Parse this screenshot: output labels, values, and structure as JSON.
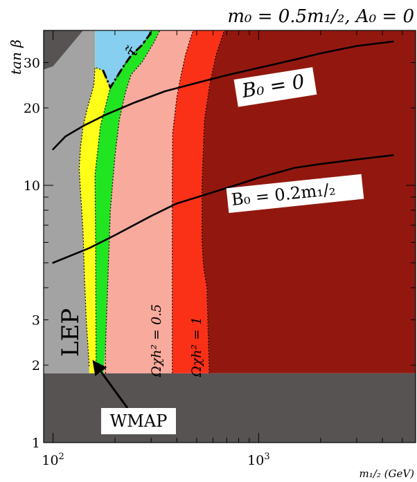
{
  "chart_data": {
    "type": "area",
    "title": "m₀ = 0.5m₁/₂, A₀ = 0",
    "xlabel": "m₁/₂ (GeV)",
    "ylabel": "tan β",
    "x_scale": "log",
    "y_scale": "log",
    "xlim": [
      90,
      5800
    ],
    "ylim": [
      1,
      40
    ],
    "x_ticks": [
      {
        "value": 100,
        "base": "10",
        "exp": "2"
      },
      {
        "value": 1000,
        "base": "10",
        "exp": "3"
      }
    ],
    "y_ticks": [
      {
        "value": 1,
        "label": "1"
      },
      {
        "value": 2,
        "label": "2"
      },
      {
        "value": 3,
        "label": "3"
      },
      {
        "value": 10,
        "label": "10"
      },
      {
        "value": 20,
        "label": "20"
      },
      {
        "value": 30,
        "label": "30"
      }
    ],
    "colors": {
      "lep": "#a3a3a3",
      "excluded": "#575353",
      "wmap": "#22e522",
      "yellow": "#ffff19",
      "omega_lt_half": "#f8aa9d",
      "omega_half_to_one": "#fb3117",
      "omega_gt_one": "#92180f",
      "stau": "#87cff0"
    },
    "regions": [
      {
        "key": "excluded_bottom",
        "points": [
          [
            90,
            1
          ],
          [
            5800,
            1
          ],
          [
            5800,
            1.86
          ],
          [
            90,
            1.86
          ]
        ]
      },
      {
        "key": "lep",
        "points": [
          [
            90,
            1.86
          ],
          [
            150,
            1.86
          ],
          [
            150,
            1.98
          ],
          [
            145,
            3.0
          ],
          [
            142,
            4.5
          ],
          [
            140,
            6.5
          ],
          [
            136,
            9.5
          ],
          [
            134,
            11.6
          ],
          [
            136,
            14.0
          ],
          [
            140,
            17.0
          ],
          [
            147,
            20.0
          ],
          [
            158,
            24.5
          ],
          [
            160,
            28.7
          ],
          [
            160,
            40
          ],
          [
            140,
            40
          ],
          [
            100,
            29
          ],
          [
            90,
            28.2
          ]
        ]
      },
      {
        "key": "excluded_top",
        "points": [
          [
            90,
            28.2
          ],
          [
            100,
            29
          ],
          [
            140,
            40
          ],
          [
            90,
            40
          ]
        ]
      },
      {
        "key": "yellow",
        "points": [
          [
            150,
            1.86
          ],
          [
            162,
            1.86
          ],
          [
            161,
            6
          ],
          [
            160,
            11
          ],
          [
            170,
            17
          ],
          [
            190,
            24
          ],
          [
            220,
            29
          ],
          [
            240,
            32
          ],
          [
            270,
            35
          ],
          [
            295,
            38.5
          ],
          [
            300,
            40
          ],
          [
            160,
            40
          ],
          [
            160,
            28.7
          ],
          [
            158,
            24.5
          ],
          [
            147,
            20.0
          ],
          [
            140,
            17.0
          ],
          [
            136,
            14.0
          ],
          [
            134,
            11.6
          ],
          [
            136,
            9.5
          ],
          [
            140,
            6.5
          ],
          [
            142,
            4.5
          ],
          [
            145,
            3.0
          ],
          [
            150,
            1.98
          ]
        ]
      },
      {
        "key": "wmap",
        "points": [
          [
            150,
            1.86
          ],
          [
            162,
            1.86
          ],
          [
            161,
            6
          ],
          [
            160,
            11
          ],
          [
            170,
            17
          ],
          [
            190,
            24
          ],
          [
            220,
            29
          ],
          [
            240,
            32
          ],
          [
            270,
            35
          ],
          [
            295,
            38.5
          ],
          [
            300,
            40
          ],
          [
            330,
            40
          ],
          [
            310,
            36
          ],
          [
            270,
            30
          ],
          [
            240,
            27
          ],
          [
            225,
            23
          ],
          [
            210,
            18
          ],
          [
            200,
            13
          ],
          [
            190,
            8
          ],
          [
            180,
            2.4
          ],
          [
            176,
            1.86
          ],
          [
            162,
            1.86
          ]
        ]
      },
      {
        "key": "stau",
        "points": [
          [
            160,
            28.7
          ],
          [
            160,
            40
          ],
          [
            300,
            40
          ],
          [
            295,
            38.5
          ],
          [
            270,
            35
          ],
          [
            240,
            32
          ],
          [
            220,
            29
          ],
          [
            190,
            24
          ],
          [
            175,
            28
          ]
        ]
      },
      {
        "key": "omega_lt_half",
        "points": [
          [
            176,
            1.86
          ],
          [
            380,
            1.86
          ],
          [
            380,
            10
          ],
          [
            382,
            16
          ],
          [
            400,
            22
          ],
          [
            420,
            27
          ],
          [
            440,
            32
          ],
          [
            460,
            36
          ],
          [
            480,
            40
          ],
          [
            330,
            40
          ],
          [
            310,
            36
          ],
          [
            270,
            30
          ],
          [
            240,
            27
          ],
          [
            225,
            23
          ],
          [
            210,
            18
          ],
          [
            200,
            13
          ],
          [
            190,
            8
          ],
          [
            180,
            2.4
          ]
        ]
      },
      {
        "key": "omega_half_to_one",
        "points": [
          [
            380,
            1.86
          ],
          [
            575,
            1.86
          ],
          [
            560,
            4
          ],
          [
            540,
            4.8
          ],
          [
            530,
            6
          ],
          [
            530,
            10
          ],
          [
            545,
            18
          ],
          [
            580,
            25
          ],
          [
            620,
            32
          ],
          [
            680,
            40
          ],
          [
            480,
            40
          ],
          [
            460,
            36
          ],
          [
            440,
            32
          ],
          [
            420,
            27
          ],
          [
            400,
            22
          ],
          [
            382,
            16
          ],
          [
            380,
            10
          ]
        ]
      },
      {
        "key": "omega_gt_one",
        "points": [
          [
            575,
            1.86
          ],
          [
            5800,
            1.86
          ],
          [
            5800,
            40
          ],
          [
            680,
            40
          ],
          [
            620,
            32
          ],
          [
            580,
            25
          ],
          [
            545,
            18
          ],
          [
            530,
            10
          ],
          [
            530,
            6
          ],
          [
            540,
            4.8
          ],
          [
            560,
            4
          ]
        ]
      }
    ],
    "boundaries": [
      {
        "key": "lep_edge",
        "points": [
          [
            150,
            1.98
          ],
          [
            145,
            3.0
          ],
          [
            142,
            4.5
          ],
          [
            140,
            6.5
          ],
          [
            136,
            9.5
          ],
          [
            134,
            11.6
          ],
          [
            136,
            14.0
          ],
          [
            140,
            17.0
          ],
          [
            147,
            20.0
          ],
          [
            158,
            24.5
          ],
          [
            160,
            28.7
          ],
          [
            175,
            28
          ],
          [
            190,
            24
          ],
          [
            220,
            29
          ],
          [
            240,
            32
          ],
          [
            270,
            35
          ],
          [
            295,
            38.5
          ],
          [
            300,
            40
          ]
        ]
      },
      {
        "key": "wmap_left",
        "points": [
          [
            162,
            1.86
          ],
          [
            161,
            6
          ],
          [
            160,
            11
          ],
          [
            170,
            17
          ],
          [
            190,
            24
          ],
          [
            220,
            29
          ],
          [
            240,
            32
          ],
          [
            270,
            35
          ],
          [
            295,
            38.5
          ],
          [
            300,
            40
          ]
        ]
      },
      {
        "key": "wmap_right",
        "points": [
          [
            180,
            1.86
          ],
          [
            180,
            2.4
          ],
          [
            190,
            8
          ],
          [
            200,
            13
          ],
          [
            210,
            18
          ],
          [
            225,
            23
          ],
          [
            240,
            27
          ],
          [
            270,
            30
          ],
          [
            310,
            36
          ],
          [
            330,
            40
          ]
        ]
      },
      {
        "key": "omega_half",
        "points": [
          [
            380,
            1.86
          ],
          [
            380,
            10
          ],
          [
            382,
            16
          ],
          [
            400,
            22
          ],
          [
            420,
            27
          ],
          [
            440,
            32
          ],
          [
            460,
            36
          ],
          [
            480,
            40
          ]
        ]
      },
      {
        "key": "omega_one",
        "points": [
          [
            575,
            1.86
          ],
          [
            560,
            4
          ],
          [
            540,
            4.8
          ],
          [
            530,
            6
          ],
          [
            530,
            10
          ],
          [
            545,
            18
          ],
          [
            580,
            25
          ],
          [
            620,
            32
          ],
          [
            680,
            40
          ]
        ]
      }
    ],
    "stau_boundary": [
      [
        175,
        28
      ],
      [
        190,
        24
      ],
      [
        220,
        29
      ],
      [
        240,
        32
      ],
      [
        270,
        35
      ],
      [
        295,
        38.5
      ],
      [
        300,
        40
      ]
    ],
    "series": [
      {
        "name": "B₀ = 0",
        "x": [
          100,
          115,
          140,
          180,
          250,
          350,
          500,
          700,
          1000,
          1500,
          2000,
          3000,
          4500
        ],
        "y": [
          13.8,
          15.5,
          17.0,
          18.8,
          21.0,
          23.2,
          25.0,
          26.8,
          28.6,
          30.8,
          32.6,
          34.8,
          36.2
        ]
      },
      {
        "name": "B₀ = 0.2m₁/₂",
        "x": [
          100,
          150,
          200,
          300,
          400,
          600,
          800,
          1000,
          1500,
          2000,
          3000,
          4500
        ],
        "y": [
          5.0,
          5.7,
          6.4,
          7.6,
          8.5,
          9.4,
          10.1,
          10.7,
          11.7,
          12.1,
          12.6,
          13.1
        ]
      }
    ],
    "annotations": {
      "lep": "LEP",
      "stau": "τ̃",
      "b0_zero": "B₀ = 0",
      "b0_frac": "B₀ = 0.2m₁/₂",
      "omega_half": "Ωχh² = 0.5",
      "omega_one": "Ωχh² = 1",
      "wmap": "WMAP"
    }
  }
}
